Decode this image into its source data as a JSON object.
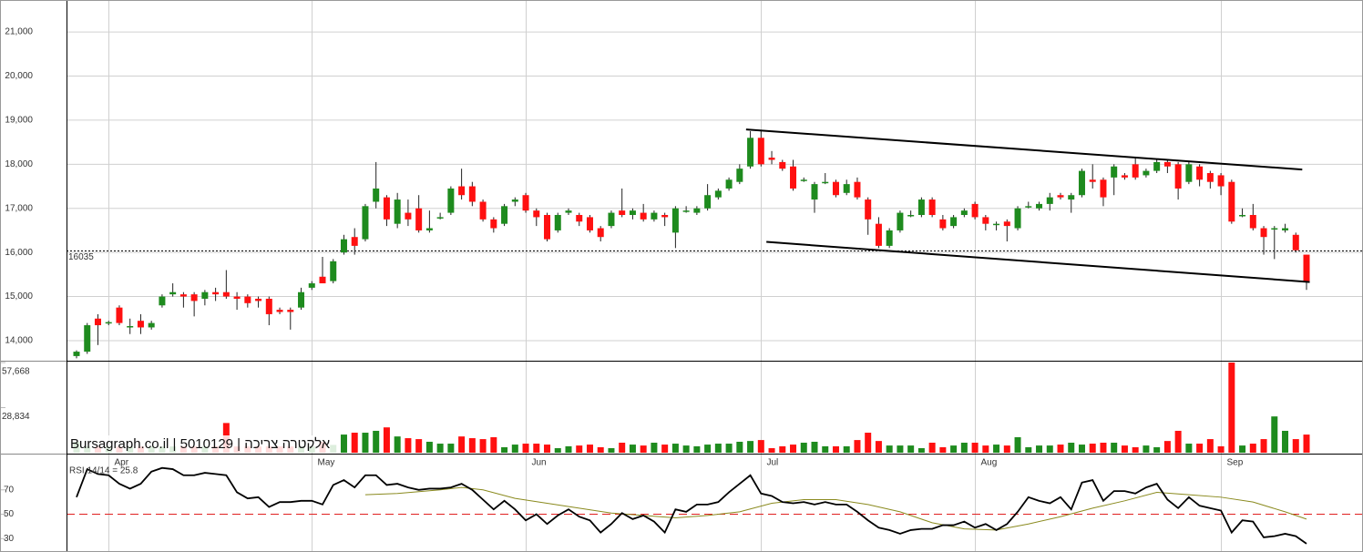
{
  "chart_data": {
    "type": "candlestick",
    "watermark": "Bursagraph.co.il | 5010129 | אלקטרה צריכה",
    "categories": [
      null,
      null,
      null,
      "Apr",
      null,
      null,
      null,
      null,
      null,
      null,
      null,
      null,
      null,
      null,
      null,
      null,
      null,
      null,
      null,
      null,
      null,
      null,
      "May",
      null,
      null,
      null,
      null,
      null,
      null,
      null,
      null,
      null,
      null,
      null,
      null,
      null,
      null,
      null,
      null,
      null,
      null,
      null,
      "Jun",
      null,
      null,
      null,
      null,
      null,
      null,
      null,
      null,
      null,
      null,
      null,
      null,
      null,
      null,
      null,
      null,
      null,
      null,
      null,
      null,
      null,
      "Jul",
      null,
      null,
      null,
      null,
      null,
      null,
      null,
      null,
      null,
      null,
      null,
      null,
      null,
      null,
      null,
      null,
      null,
      null,
      null,
      "Aug",
      null,
      null,
      null,
      null,
      null,
      null,
      null,
      null,
      null,
      null,
      null,
      null,
      null,
      null,
      null,
      null,
      null,
      null,
      null,
      null,
      null,
      null,
      "Sep",
      null,
      null,
      null,
      null,
      null,
      null,
      null,
      null
    ],
    "open": [
      13650,
      13750,
      14500,
      14400,
      14750,
      14300,
      14450,
      14300,
      14800,
      15050,
      15050,
      15050,
      14950,
      15100,
      15100,
      15000,
      15000,
      14950,
      14950,
      14700,
      14700,
      14750,
      15200,
      15450,
      15350,
      16000,
      16350,
      16300,
      17150,
      17250,
      16650,
      16900,
      17000,
      16500,
      16800,
      16900,
      17500,
      17500,
      17150,
      16750,
      16650,
      17150,
      17300,
      16950,
      16850,
      16500,
      16900,
      16850,
      16800,
      16550,
      16600,
      16950,
      16850,
      16900,
      16750,
      16850,
      16450,
      16950,
      16900,
      17000,
      17250,
      17450,
      17600,
      17950,
      18600,
      18150,
      18050,
      17950,
      17650,
      17200,
      17600,
      17600,
      17350,
      17600,
      17200,
      16650,
      16150,
      16500,
      16850,
      16850,
      17200,
      16750,
      16600,
      16850,
      17100,
      16800,
      16650,
      16700,
      16550,
      17050,
      17000,
      17100,
      17300,
      17200,
      17300,
      17650,
      17650,
      17700,
      17750,
      18000,
      17750,
      17850,
      18050,
      18000,
      17600,
      17950,
      17800,
      17750,
      17600,
      16850,
      16850,
      16550,
      16550,
      16500,
      16400,
      15950
    ],
    "high": [
      13780,
      14400,
      14600,
      14450,
      14800,
      14500,
      14600,
      14450,
      15050,
      15300,
      15100,
      15100,
      15150,
      15200,
      15600,
      15100,
      15050,
      15000,
      15000,
      14750,
      14750,
      15200,
      15350,
      15900,
      15850,
      16400,
      16550,
      17100,
      18050,
      17300,
      17350,
      17200,
      17300,
      16950,
      16900,
      17500,
      17900,
      17600,
      17200,
      16800,
      17100,
      17250,
      17350,
      17000,
      16900,
      16900,
      17000,
      16900,
      16850,
      16600,
      16950,
      17450,
      17000,
      17100,
      16950,
      16900,
      17050,
      17050,
      17050,
      17550,
      17450,
      17700,
      18000,
      18750,
      18750,
      18300,
      18100,
      18100,
      17700,
      17600,
      17800,
      17650,
      17650,
      17700,
      17250,
      16800,
      16550,
      16950,
      16950,
      17250,
      17250,
      16850,
      16850,
      17000,
      17150,
      16850,
      16700,
      16750,
      17050,
      17150,
      17150,
      17350,
      17350,
      17350,
      17900,
      18000,
      17700,
      18000,
      17800,
      18150,
      17900,
      18100,
      18100,
      18050,
      18050,
      18000,
      17850,
      17800,
      17650,
      17000,
      17100,
      16600,
      16600,
      16650,
      16450,
      15950
    ],
    "low": [
      13600,
      13700,
      13900,
      14350,
      14350,
      14150,
      14150,
      14250,
      14750,
      15000,
      14750,
      14550,
      14800,
      14900,
      14950,
      14700,
      14750,
      14750,
      14350,
      14600,
      14250,
      14700,
      15150,
      15300,
      15300,
      15950,
      15950,
      16250,
      17000,
      16600,
      16550,
      16600,
      16450,
      16450,
      16750,
      16850,
      17200,
      17050,
      16700,
      16450,
      16600,
      17050,
      16900,
      16600,
      16250,
      16450,
      16850,
      16600,
      16450,
      16250,
      16550,
      16800,
      16750,
      16700,
      16700,
      16600,
      16100,
      16900,
      16850,
      16950,
      17200,
      17400,
      17550,
      17900,
      17950,
      18000,
      17850,
      17400,
      17600,
      16900,
      17550,
      17250,
      17300,
      17200,
      16400,
      16100,
      16100,
      16450,
      16800,
      16800,
      16800,
      16500,
      16550,
      16800,
      16750,
      16500,
      16500,
      16250,
      16500,
      17000,
      16950,
      16950,
      17200,
      16900,
      17250,
      17450,
      17050,
      17300,
      17650,
      17650,
      17700,
      17800,
      17800,
      17200,
      17550,
      17500,
      17450,
      17300,
      16650,
      16800,
      16500,
      15950,
      15850,
      16450,
      16000,
      15150
    ],
    "close": [
      13750,
      14350,
      14350,
      14420,
      14400,
      14330,
      14300,
      14400,
      15000,
      15100,
      15000,
      14900,
      15100,
      15050,
      15000,
      14950,
      14850,
      14900,
      14600,
      14650,
      14650,
      15100,
      15300,
      15300,
      15800,
      16300,
      16150,
      17050,
      17450,
      16750,
      17200,
      16750,
      16500,
      16550,
      16800,
      17450,
      17300,
      17150,
      16750,
      16550,
      17050,
      17200,
      16950,
      16800,
      16300,
      16850,
      16950,
      16700,
      16500,
      16350,
      16900,
      16850,
      16950,
      16750,
      16900,
      16800,
      17000,
      16950,
      17000,
      17300,
      17400,
      17650,
      17900,
      18600,
      18000,
      18100,
      17900,
      17450,
      17650,
      17550,
      17600,
      17300,
      17550,
      17250,
      16750,
      16150,
      16500,
      16900,
      16850,
      17200,
      16850,
      16550,
      16800,
      16950,
      16800,
      16650,
      16650,
      16600,
      17000,
      17050,
      17100,
      17250,
      17250,
      17300,
      17850,
      17600,
      17250,
      17950,
      17700,
      17700,
      17850,
      18050,
      17950,
      17450,
      18000,
      17650,
      17600,
      17500,
      16700,
      16850,
      16550,
      16350,
      16550,
      16550,
      16050,
      15350
    ],
    "up_color": "#1e8b1e",
    "down_color": "#ff1010",
    "ylim": [
      13545,
      21725
    ],
    "yticks": [
      {
        "value": 14000,
        "label": "14,000"
      },
      {
        "value": 15000,
        "label": "15,000"
      },
      {
        "value": 16000,
        "label": "16,000"
      },
      {
        "value": 17000,
        "label": "17,000"
      },
      {
        "value": 18000,
        "label": "18,000"
      },
      {
        "value": 19000,
        "label": "19,000"
      },
      {
        "value": 20000,
        "label": "20,000"
      },
      {
        "value": 21000,
        "label": "21,000"
      }
    ],
    "grid": true,
    "reference_line": 16035,
    "trend_lines": [
      {
        "x": [
          62.6,
          114.6
        ],
        "values": [
          18790,
          17880
        ]
      },
      {
        "x": [
          64.5,
          115.3
        ],
        "values": [
          16240,
          15330
        ]
      }
    ],
    "volume": {
      "ylim": [
        0,
        57668
      ],
      "yticks": [
        {
          "value": 57668,
          "label": "57,668"
        },
        {
          "value": 28834,
          "label": "28,834"
        }
      ],
      "values": [
        7000,
        4000,
        4000,
        4000,
        4000,
        4000,
        4000,
        4000,
        4000,
        4000,
        4000,
        4000,
        4000,
        4000,
        19000,
        4000,
        4000,
        4000,
        4000,
        4000,
        4000,
        4000,
        4000,
        7000,
        5000,
        11600,
        12800,
        12800,
        14000,
        16200,
        10400,
        9300,
        8700,
        7000,
        5800,
        5800,
        10400,
        9300,
        8700,
        9900,
        3500,
        5200,
        5800,
        5800,
        5200,
        2900,
        4100,
        4600,
        5200,
        3500,
        2900,
        6400,
        5200,
        4600,
        6400,
        5200,
        5800,
        4600,
        4100,
        5200,
        5800,
        5800,
        7000,
        7500,
        8100,
        2900,
        4100,
        5200,
        6400,
        7000,
        4100,
        4100,
        4100,
        8100,
        12800,
        7500,
        4600,
        4600,
        4600,
        2900,
        6400,
        3500,
        4600,
        6400,
        6400,
        4600,
        5200,
        4600,
        9900,
        3500,
        4600,
        4600,
        5200,
        6400,
        5200,
        5800,
        6400,
        6400,
        4600,
        3500,
        4600,
        3500,
        7500,
        14000,
        5800,
        5800,
        8700,
        4100,
        57668,
        4600,
        5800,
        8700,
        23200,
        14000,
        8700,
        11600
      ]
    },
    "rsi": {
      "label": "RSI 14/14 = 25.8",
      "ylim": [
        19,
        99
      ],
      "yticks": [
        30,
        50,
        70
      ],
      "reference": 50,
      "reference_color": "#e02020",
      "series": [
        {
          "color": "#000000",
          "values": [
            64,
            87,
            83,
            82,
            75,
            71,
            75,
            85,
            88,
            87,
            82,
            82,
            84,
            83,
            82,
            68,
            63,
            64,
            56,
            60,
            60,
            61,
            61,
            58,
            74,
            78,
            72,
            82,
            82,
            74,
            75,
            72,
            70,
            71,
            71,
            72,
            75,
            70,
            62,
            54,
            61,
            54,
            45,
            50,
            42,
            49,
            54,
            48,
            45,
            35,
            42,
            51,
            46,
            49,
            44,
            35,
            54,
            52,
            58,
            58,
            60,
            68,
            75,
            82,
            67,
            65,
            60,
            59,
            60,
            58,
            60,
            58,
            58,
            52,
            45,
            39,
            37,
            34,
            37,
            38,
            38,
            41,
            41,
            44,
            39,
            42,
            37,
            42,
            52,
            64,
            61,
            59,
            64,
            54,
            76,
            78,
            61,
            69,
            69,
            67,
            72,
            75,
            62,
            55,
            64,
            57,
            55,
            53,
            35,
            45,
            44,
            31,
            32,
            34,
            32,
            25.8
          ]
        },
        {
          "color": "#8a8a1e",
          "x": [
            27,
            30,
            34,
            36,
            38,
            41,
            44,
            47,
            50,
            53,
            56,
            59,
            62,
            65,
            68,
            71,
            74,
            77,
            80,
            83,
            86,
            89,
            92,
            95,
            98,
            101,
            104,
            107,
            110,
            113,
            115
          ],
          "values": [
            66,
            67,
            70,
            72,
            70,
            63,
            59,
            55,
            51,
            49,
            47,
            49,
            52,
            59,
            62,
            62,
            58,
            52,
            43,
            38,
            37,
            42,
            48,
            55,
            61,
            68,
            66,
            64,
            60,
            52,
            46
          ]
        }
      ]
    }
  }
}
